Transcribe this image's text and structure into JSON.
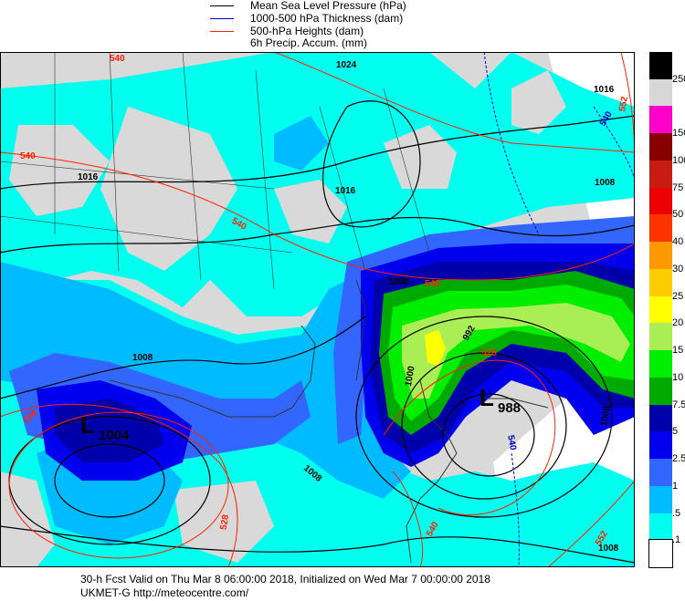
{
  "legend": {
    "items": [
      {
        "label": "Mean Sea Level Pressure (hPa)",
        "color": "#000000"
      },
      {
        "label": "1000-500 hPa Thickness (dam)",
        "color": "#0000cc"
      },
      {
        "label": "500-hPa Heights (dam)",
        "color": "#ff2200"
      },
      {
        "label": "6h Precip. Accum. (mm)",
        "color": ""
      }
    ]
  },
  "colorbar": {
    "levels": [
      {
        "label": "250",
        "color": "#000000"
      },
      {
        "label": "",
        "color": "#d7d7d7"
      },
      {
        "label": "150",
        "color": "#ff00cc"
      },
      {
        "label": "100",
        "color": "#880000"
      },
      {
        "label": "75",
        "color": "#c81c12"
      },
      {
        "label": "50",
        "color": "#ee0000"
      },
      {
        "label": "40",
        "color": "#ff3300"
      },
      {
        "label": "30",
        "color": "#ff9900"
      },
      {
        "label": "25",
        "color": "#ffcc00"
      },
      {
        "label": "20",
        "color": "#ffff00"
      },
      {
        "label": "15",
        "color": "#aaee55"
      },
      {
        "label": "10",
        "color": "#00ee00"
      },
      {
        "label": "7.5",
        "color": "#00aa00"
      },
      {
        "label": "5",
        "color": "#0000aa"
      },
      {
        "label": "2.5",
        "color": "#0000ee"
      },
      {
        "label": "1",
        "color": "#3366ff"
      },
      {
        "label": ".5",
        "color": "#00bbff"
      },
      {
        "label": ".1",
        "color": "#00ffee"
      },
      {
        "label": "",
        "color": "#ffffff"
      }
    ]
  },
  "map": {
    "lows": [
      {
        "symbol": "L",
        "value": "1004"
      },
      {
        "symbol": "L",
        "value": "988"
      }
    ],
    "isobar_labels": [
      "1024",
      "1016",
      "1016",
      "1016",
      "1008",
      "1008",
      "1000",
      "992",
      "1008",
      "1008",
      "1008",
      "1008"
    ],
    "height_labels": [
      "540",
      "540",
      "540",
      "528",
      "528",
      "528",
      "540",
      "552",
      "552",
      "540"
    ],
    "thickness_labels": [
      "540",
      "540"
    ]
  },
  "footer": {
    "line1": "30-h Fcst Valid on Thu Mar  8 06:00:00 2018, Initialized on Wed Mar  7 00:00:00 2018",
    "line2": "UKMET-G   http://meteocentre.com/"
  }
}
